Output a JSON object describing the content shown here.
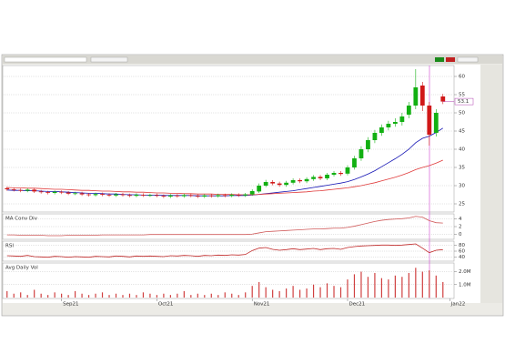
{
  "chart_data": [
    {
      "type": "candlestick",
      "up_color": "#12b012",
      "down_color": "#d01818",
      "open": [
        29.3,
        29.0,
        28.8,
        28.6,
        28.9,
        28.4,
        28.2,
        28.0,
        28.3,
        28.1,
        27.8,
        27.9,
        27.6,
        27.4,
        27.7,
        27.5,
        27.3,
        27.6,
        27.4,
        27.2,
        27.5,
        27.3,
        27.4,
        27.2,
        27.0,
        27.3,
        27.1,
        27.4,
        27.2,
        27.0,
        27.3,
        27.1,
        27.4,
        27.2,
        27.5,
        27.3,
        27.6,
        28.4,
        30.0,
        31.0,
        30.6,
        30.2,
        30.8,
        31.5,
        31.2,
        31.8,
        32.4,
        32.0,
        33.0,
        33.5,
        33.3,
        35.0,
        37.5,
        40.0,
        42.5,
        44.5,
        46.0,
        47.0,
        47.5,
        49.5,
        52.0,
        57.5,
        52.0,
        44.5,
        54.5,
        null
      ],
      "high": [
        29.7,
        29.4,
        29.2,
        29.3,
        29.3,
        28.8,
        28.6,
        28.7,
        28.7,
        28.5,
        28.3,
        28.3,
        28.0,
        28.1,
        28.1,
        27.9,
        28.0,
        28.0,
        27.8,
        27.9,
        27.9,
        27.8,
        27.8,
        27.6,
        27.7,
        27.7,
        27.8,
        27.8,
        27.6,
        27.7,
        27.7,
        27.8,
        27.8,
        27.9,
        27.9,
        28.0,
        29.0,
        30.6,
        31.6,
        31.5,
        31.1,
        31.3,
        32.0,
        32.0,
        32.3,
        32.9,
        32.9,
        33.5,
        34.0,
        34.0,
        35.6,
        38.2,
        40.8,
        43.3,
        45.3,
        46.8,
        47.8,
        48.5,
        50.0,
        53.0,
        62.0,
        58.5,
        53.0,
        51.0,
        55.2,
        null
      ],
      "low": [
        28.6,
        28.4,
        28.2,
        28.2,
        28.0,
        27.8,
        27.6,
        27.6,
        27.7,
        27.4,
        27.4,
        27.2,
        27.0,
        27.0,
        27.1,
        26.9,
        26.9,
        27.0,
        26.8,
        26.8,
        26.9,
        26.9,
        26.8,
        26.6,
        26.6,
        26.7,
        26.7,
        26.8,
        26.6,
        26.6,
        26.7,
        26.7,
        26.8,
        26.8,
        26.9,
        26.9,
        27.2,
        28.0,
        29.6,
        30.1,
        29.7,
        29.7,
        30.3,
        30.7,
        30.7,
        31.3,
        31.5,
        31.5,
        32.5,
        32.7,
        32.8,
        34.4,
        36.8,
        39.2,
        41.7,
        43.7,
        45.2,
        46.2,
        46.5,
        48.5,
        51.0,
        50.5,
        41.0,
        43.5,
        52.4,
        null
      ],
      "close": [
        29.0,
        28.8,
        28.6,
        28.9,
        28.4,
        28.2,
        28.0,
        28.3,
        28.1,
        27.8,
        27.9,
        27.6,
        27.4,
        27.7,
        27.5,
        27.3,
        27.6,
        27.4,
        27.2,
        27.5,
        27.3,
        27.4,
        27.2,
        27.0,
        27.3,
        27.1,
        27.4,
        27.2,
        27.0,
        27.3,
        27.1,
        27.4,
        27.2,
        27.5,
        27.3,
        27.6,
        28.5,
        30.0,
        31.0,
        30.6,
        30.2,
        30.8,
        31.5,
        31.2,
        31.8,
        32.4,
        32.0,
        33.0,
        33.5,
        33.2,
        35.0,
        37.5,
        40.0,
        42.5,
        44.5,
        46.0,
        47.0,
        47.5,
        49.0,
        52.0,
        57.0,
        52.0,
        44.0,
        50.0,
        53.1,
        null
      ],
      "series": [
        {
          "color": "#1414b4",
          "values": [
            28.8,
            28.7,
            28.7,
            28.6,
            28.6,
            28.5,
            28.4,
            28.4,
            28.3,
            28.2,
            28.1,
            28.0,
            27.9,
            27.9,
            27.8,
            27.7,
            27.7,
            27.6,
            27.5,
            27.5,
            27.4,
            27.4,
            27.4,
            27.3,
            27.3,
            27.3,
            27.3,
            27.3,
            27.2,
            27.2,
            27.2,
            27.2,
            27.2,
            27.3,
            27.3,
            27.3,
            27.4,
            27.6,
            27.8,
            28.0,
            28.2,
            28.4,
            28.6,
            28.9,
            29.2,
            29.5,
            29.8,
            30.1,
            30.4,
            30.7,
            31.1,
            31.7,
            32.4,
            33.2,
            34.1,
            35.2,
            36.3,
            37.4,
            38.6,
            40.0,
            41.8,
            43.0,
            43.6,
            44.6,
            45.8,
            null
          ]
        },
        {
          "color": "#e03a3a",
          "values": [
            29.5,
            29.4,
            29.4,
            29.3,
            29.3,
            29.2,
            29.1,
            29.0,
            29.0,
            28.9,
            28.8,
            28.7,
            28.7,
            28.6,
            28.5,
            28.5,
            28.4,
            28.3,
            28.3,
            28.2,
            28.2,
            28.1,
            28.0,
            28.0,
            27.9,
            27.9,
            27.8,
            27.8,
            27.7,
            27.7,
            27.7,
            27.6,
            27.6,
            27.6,
            27.5,
            27.5,
            27.5,
            27.6,
            27.7,
            27.8,
            27.9,
            28.0,
            28.1,
            28.2,
            28.3,
            28.5,
            28.6,
            28.8,
            29.0,
            29.2,
            29.4,
            29.7,
            30.0,
            30.4,
            30.8,
            31.3,
            31.8,
            32.3,
            32.9,
            33.6,
            34.4,
            35.0,
            35.5,
            36.2,
            37.0,
            null
          ]
        }
      ],
      "ylim": [
        23,
        63
      ],
      "yticks": [
        25,
        30,
        35,
        40,
        45,
        50,
        55,
        60
      ],
      "grid": true
    },
    {
      "type": "line",
      "title": "MA Conv Div",
      "series": [
        {
          "color": "#d05a5a",
          "values": [
            -0.1,
            -0.1,
            -0.2,
            -0.2,
            -0.2,
            -0.2,
            -0.3,
            -0.3,
            -0.3,
            -0.2,
            -0.2,
            -0.2,
            -0.2,
            -0.2,
            -0.1,
            -0.1,
            -0.1,
            -0.1,
            -0.1,
            -0.1,
            -0.1,
            0,
            0,
            0,
            0,
            0,
            0,
            0,
            0,
            0,
            0,
            0,
            0,
            0,
            0,
            0,
            0.1,
            0.4,
            0.7,
            0.8,
            0.9,
            1.0,
            1.1,
            1.2,
            1.3,
            1.4,
            1.4,
            1.5,
            1.6,
            1.6,
            1.8,
            2.1,
            2.5,
            2.9,
            3.3,
            3.6,
            3.8,
            3.9,
            4.0,
            4.2,
            4.6,
            4.4,
            3.5,
            3.0,
            2.9,
            null
          ]
        }
      ],
      "ylim": [
        -1,
        5
      ],
      "yticks": [
        0,
        2,
        4
      ],
      "grid": true
    },
    {
      "type": "line",
      "title": "RSI",
      "series": [
        {
          "color": "#c02828",
          "values": [
            45,
            44,
            43,
            46,
            42,
            41,
            40,
            43,
            42,
            40,
            42,
            41,
            40,
            43,
            42,
            41,
            44,
            43,
            41,
            44,
            43,
            44,
            43,
            42,
            45,
            44,
            46,
            45,
            43,
            46,
            45,
            47,
            46,
            48,
            47,
            49,
            62,
            70,
            72,
            66,
            63,
            65,
            68,
            65,
            67,
            69,
            65,
            68,
            69,
            66,
            72,
            75,
            77,
            78,
            79,
            80,
            80,
            79,
            80,
            82,
            84,
            70,
            55,
            63,
            65,
            null
          ]
        }
      ],
      "ylim": [
        30,
        90
      ],
      "yticks": [
        40,
        60,
        80
      ],
      "grid": true
    },
    {
      "type": "bar",
      "title": "Avg Daily Vol",
      "color": "#d04040",
      "categories": [
        null,
        null,
        null,
        null,
        null,
        null,
        null,
        null,
        "Sep21",
        null,
        null,
        null,
        null,
        null,
        null,
        null,
        null,
        null,
        null,
        null,
        null,
        null,
        "Oct21",
        null,
        null,
        null,
        null,
        null,
        null,
        null,
        null,
        null,
        null,
        null,
        null,
        null,
        "Nov21",
        null,
        null,
        null,
        null,
        null,
        null,
        null,
        null,
        null,
        null,
        null,
        null,
        null,
        "Dec21",
        null,
        null,
        null,
        null,
        null,
        null,
        null,
        null,
        null,
        null,
        null,
        null,
        null,
        null,
        "Jan22"
      ],
      "values": [
        0.5,
        0.3,
        0.4,
        0.2,
        0.6,
        0.3,
        0.2,
        0.4,
        0.3,
        0.2,
        0.5,
        0.3,
        0.2,
        0.3,
        0.4,
        0.2,
        0.3,
        0.2,
        0.3,
        0.2,
        0.4,
        0.3,
        0.2,
        0.3,
        0.2,
        0.3,
        0.5,
        0.2,
        0.3,
        0.2,
        0.3,
        0.2,
        0.4,
        0.3,
        0.2,
        0.4,
        0.9,
        1.2,
        0.8,
        0.6,
        0.5,
        0.7,
        0.9,
        0.6,
        0.7,
        1.0,
        0.8,
        1.1,
        0.9,
        0.8,
        1.4,
        1.8,
        2.0,
        1.6,
        1.9,
        1.5,
        1.4,
        1.7,
        1.6,
        1.9,
        2.3,
        2.0,
        2.1,
        1.7,
        1.2,
        null
      ],
      "ylim": [
        0,
        2.6
      ],
      "yticks": [
        {
          "value": 1,
          "label": "1.0M"
        },
        {
          "value": 2,
          "label": "2.0M"
        }
      ],
      "grid": true
    }
  ]
}
